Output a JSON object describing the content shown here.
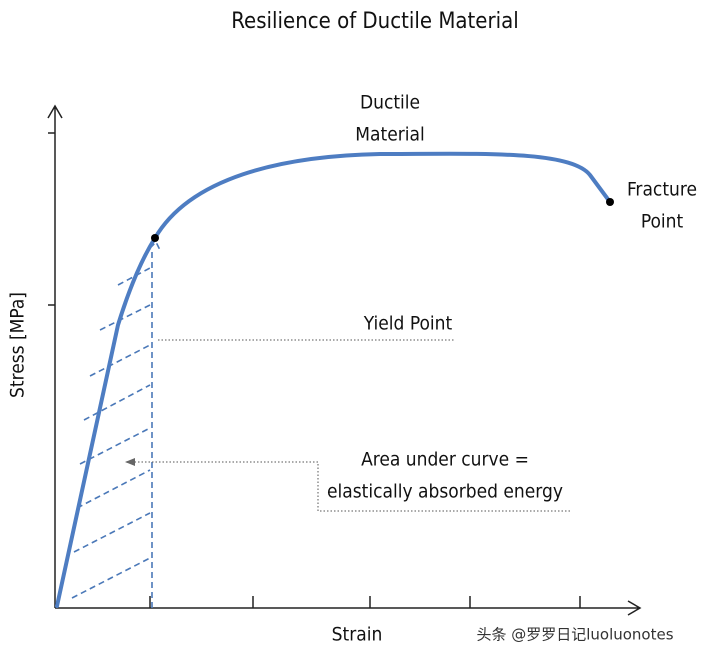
{
  "title": "Resilience of Ductile Material",
  "y_axis_label": "Stress [MPa]",
  "x_axis_label": "Strain",
  "annotations": {
    "ductile_material": [
      "Ductile",
      "Material"
    ],
    "fracture_point": [
      "Fracture",
      "Point"
    ],
    "yield_point": "Yield Point",
    "area_under_curve": [
      "Area under curve =",
      "elastically absorbed energy"
    ]
  },
  "watermark": "头条 @罗罗日记luoluonotes"
}
